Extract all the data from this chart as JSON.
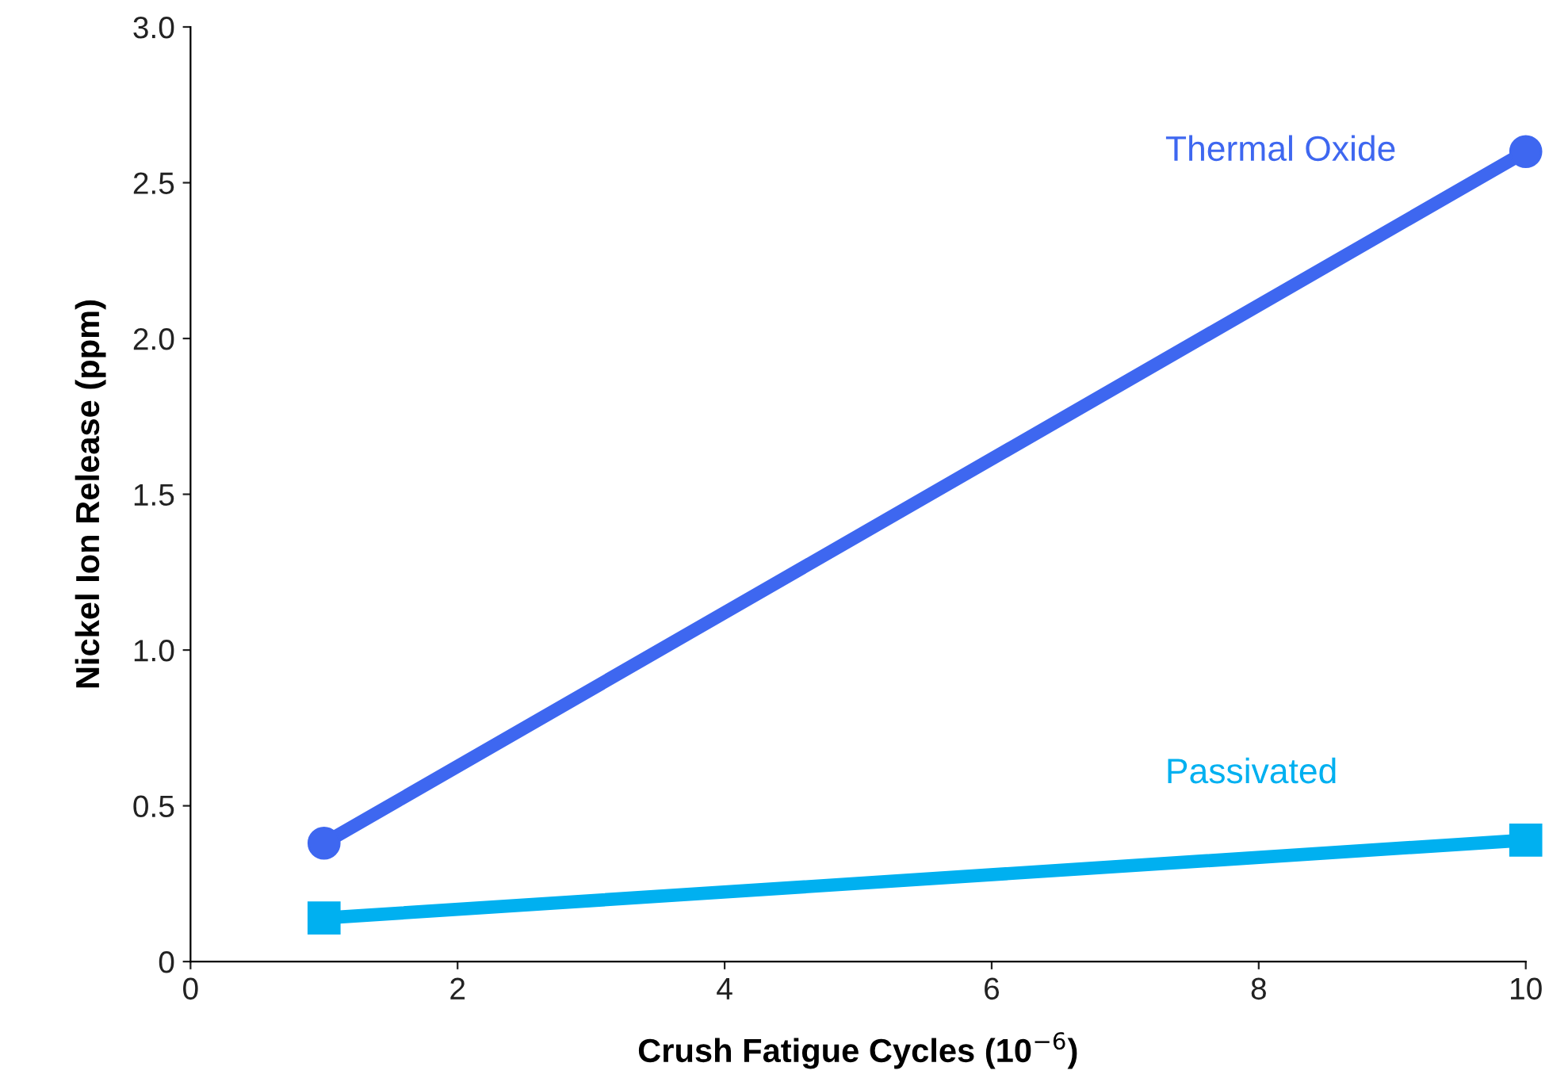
{
  "chart_data": {
    "type": "line",
    "xlabel": "Crush Fatigue Cycles (10$^{−6}$)",
    "ylabel": "Nickel Ion Release (ppm)",
    "x": [
      1,
      10
    ],
    "series": [
      {
        "name": "Thermal Oxide",
        "color": "#3e67f0",
        "values": [
          0.38,
          2.6
        ],
        "marker": "circle"
      },
      {
        "name": "Passivated",
        "color": "#00b0f0",
        "values": [
          0.14,
          0.39
        ],
        "marker": "square"
      }
    ],
    "xlim": [
      0,
      10
    ],
    "xticks": [
      0,
      2,
      4,
      6,
      8,
      10
    ],
    "ylim": [
      0,
      3.0
    ],
    "yticks": [
      {
        "value": 0,
        "label": "0"
      },
      {
        "value": 0.5,
        "label": "0.5"
      },
      {
        "value": 1.0,
        "label": "1.0"
      },
      {
        "value": 1.5,
        "label": "1.5"
      },
      {
        "value": 2.0,
        "label": "2.0"
      },
      {
        "value": 2.5,
        "label": "2.5"
      },
      {
        "value": 3.0,
        "label": "3.0"
      }
    ],
    "grid": false,
    "legend": false,
    "line_style": "solid"
  }
}
